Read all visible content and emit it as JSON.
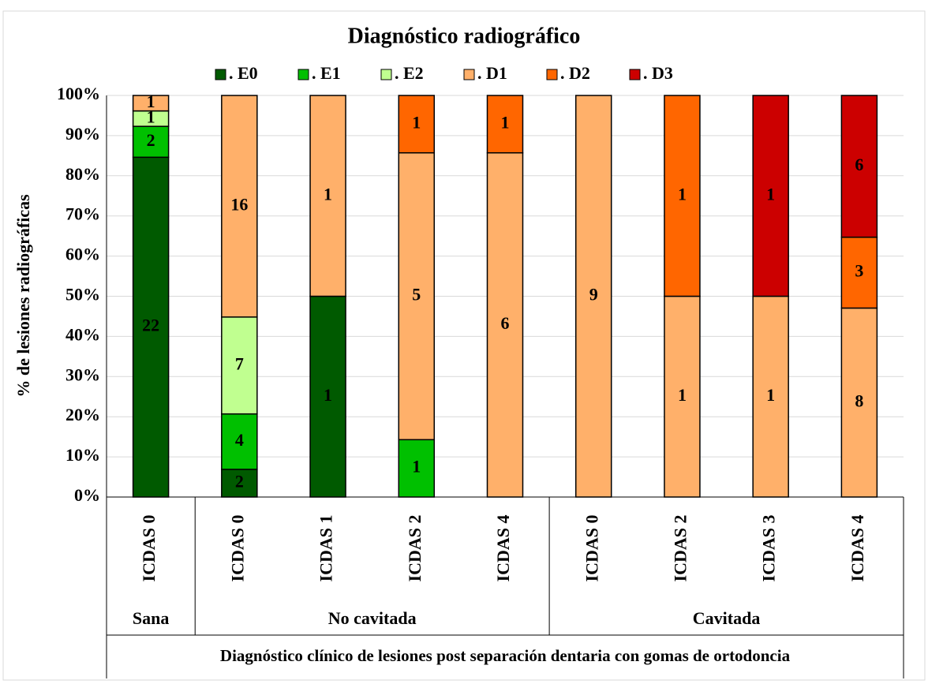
{
  "chart_data": {
    "type": "bar",
    "stacking": "percent",
    "title": "Diagnóstico radiográfico",
    "y_label": "% de lesiones radiográficas",
    "x_label": "Diagnóstico clínico de lesiones post separación dentaria con gomas de ortodoncia",
    "categories": [
      "ICDAS 0",
      "ICDAS 0",
      "ICDAS 1",
      "ICDAS 2",
      "ICDAS 4",
      "ICDAS 0",
      "ICDAS 2",
      "ICDAS 3",
      "ICDAS 4"
    ],
    "groups": [
      {
        "label": "Sana",
        "count": 1
      },
      {
        "label": "No cavitada",
        "count": 4
      },
      {
        "label": "Cavitada",
        "count": 4
      }
    ],
    "series": [
      {
        "name": ". E0",
        "color": "#005a00",
        "values": [
          22,
          2,
          1,
          null,
          null,
          null,
          null,
          null,
          null
        ]
      },
      {
        "name": ". E1",
        "color": "#00c000",
        "values": [
          2,
          4,
          null,
          1,
          null,
          null,
          null,
          null,
          null
        ]
      },
      {
        "name": ". E2",
        "color": "#c0ff90",
        "values": [
          1,
          7,
          null,
          null,
          null,
          null,
          null,
          null,
          null
        ]
      },
      {
        "name": ". D1",
        "color": "#ffb06a",
        "values": [
          1,
          16,
          1,
          5,
          6,
          9,
          1,
          1,
          8
        ]
      },
      {
        "name": ". D2",
        "color": "#ff6600",
        "values": [
          null,
          null,
          null,
          1,
          1,
          null,
          1,
          null,
          3
        ]
      },
      {
        "name": ". D3",
        "color": "#cc0000",
        "values": [
          null,
          null,
          null,
          null,
          null,
          null,
          null,
          1,
          6
        ]
      }
    ],
    "ylim": [
      0,
      100
    ],
    "yticks": [
      {
        "value": 0,
        "label": "0%"
      },
      {
        "value": 10,
        "label": "10%"
      },
      {
        "value": 20,
        "label": "20%"
      },
      {
        "value": 30,
        "label": "30%"
      },
      {
        "value": 40,
        "label": "40%"
      },
      {
        "value": 50,
        "label": "50%"
      },
      {
        "value": 60,
        "label": "60%"
      },
      {
        "value": 70,
        "label": "70%"
      },
      {
        "value": 80,
        "label": "80%"
      },
      {
        "value": 90,
        "label": "90%"
      },
      {
        "value": 100,
        "label": "100%"
      }
    ],
    "grid": true,
    "legend": "top"
  }
}
